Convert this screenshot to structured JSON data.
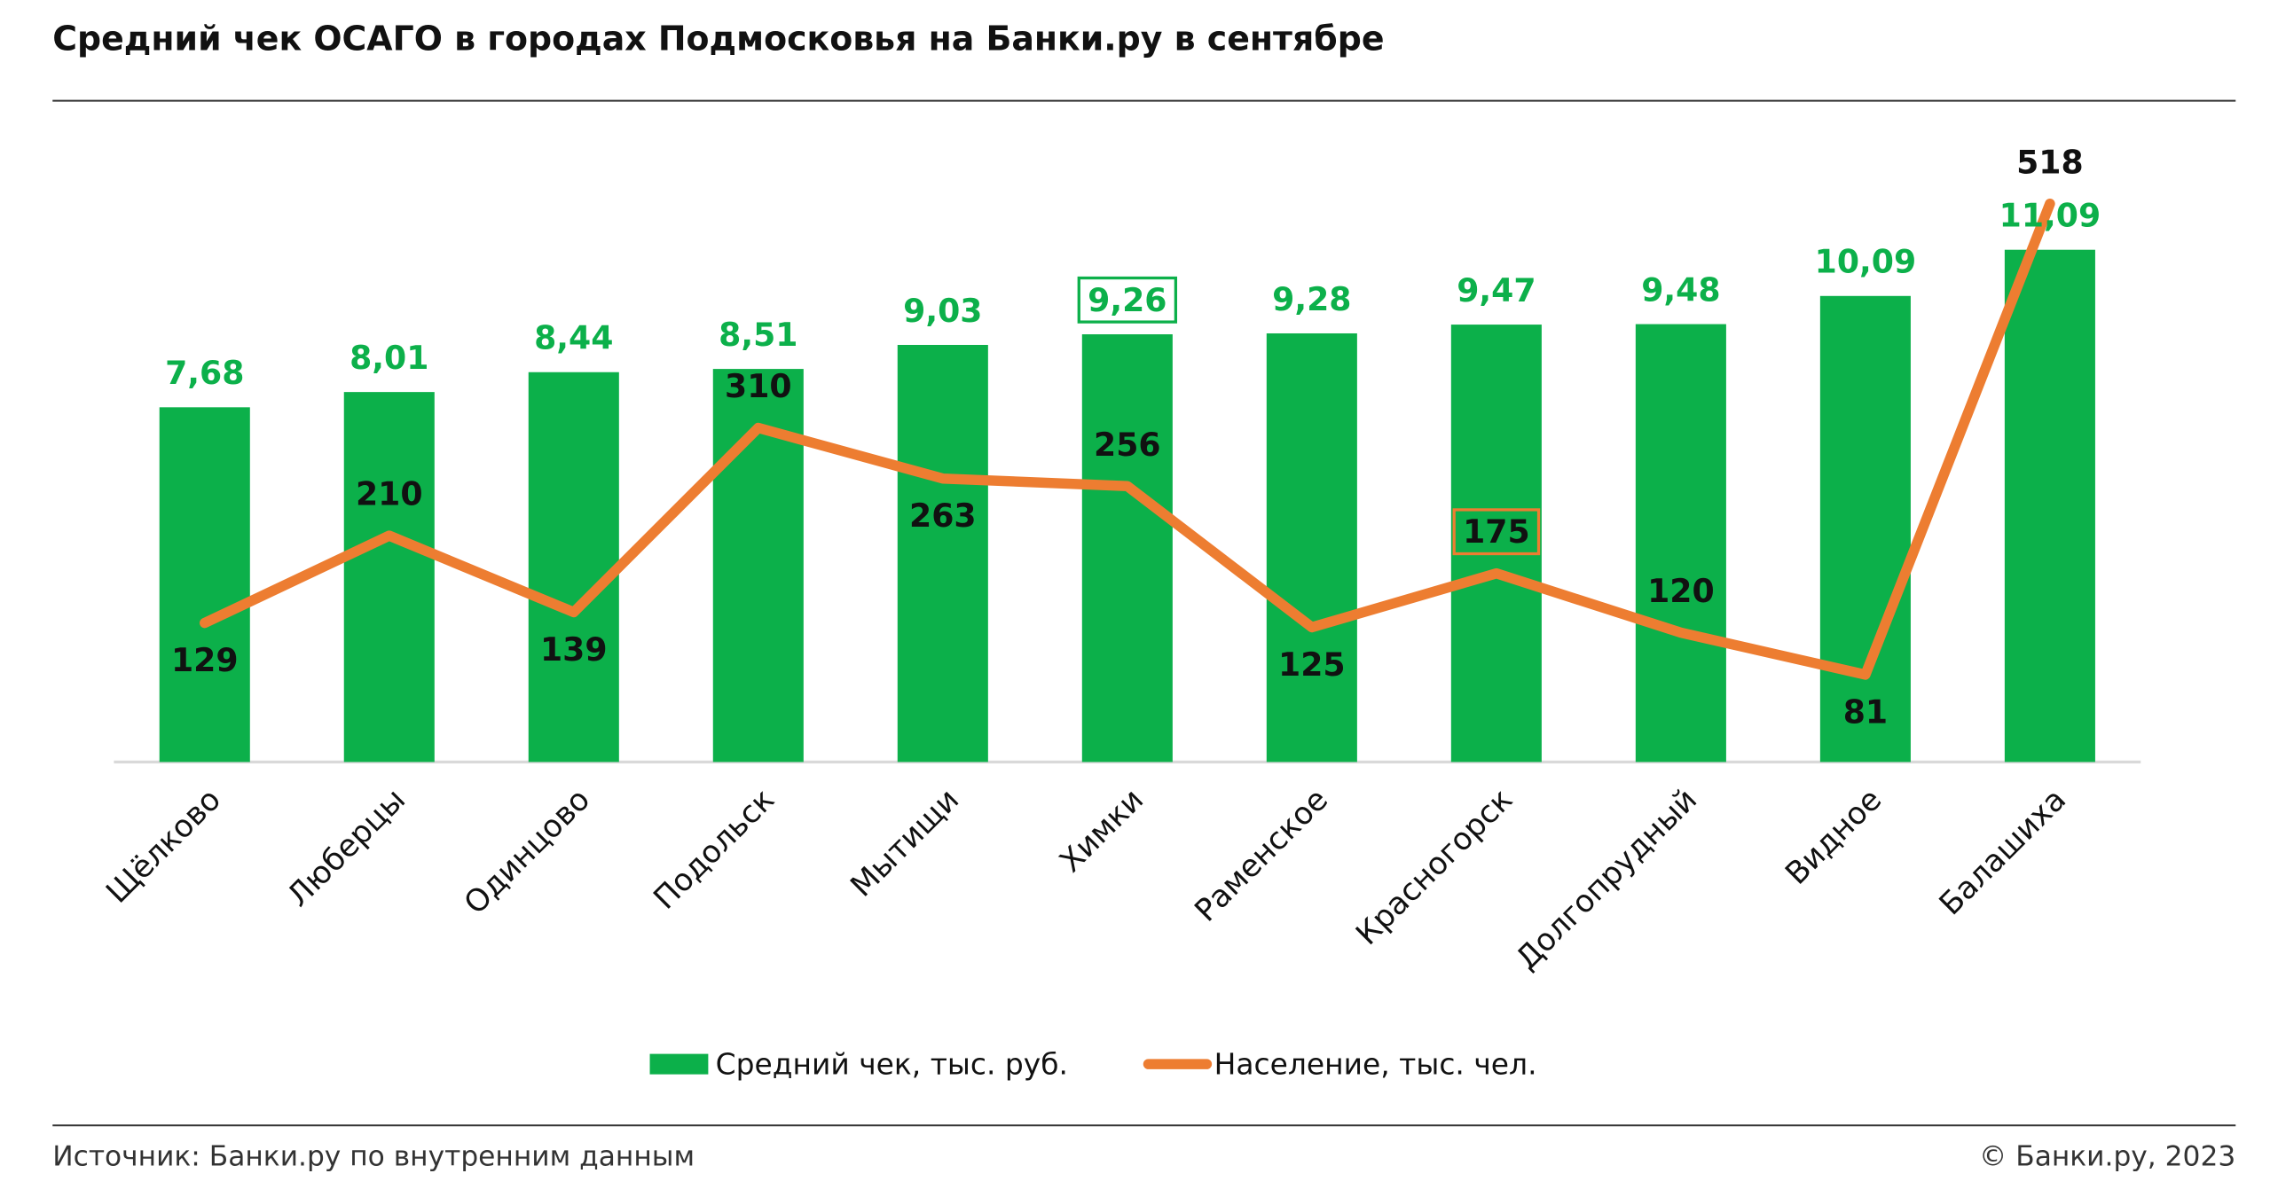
{
  "chart_data": {
    "type": "bar-line",
    "title": "Средний чек ОСАГО в городах Подмосковья на Банки.ру в сентябре",
    "categories": [
      "Щёлково",
      "Люберцы",
      "Одинцово",
      "Подольск",
      "Мытищи",
      "Химки",
      "Раменское",
      "Красногорск",
      "Долгопрудный",
      "Видное",
      "Балашиха"
    ],
    "series": [
      {
        "name": "Средний чек, тыс. руб.",
        "type": "bar",
        "color": "#0cb04a",
        "values": [
          7.68,
          8.01,
          8.44,
          8.51,
          9.03,
          9.26,
          9.28,
          9.47,
          9.48,
          10.09,
          11.09
        ],
        "value_labels": [
          "7,68",
          "8,01",
          "8,44",
          "8,51",
          "9,03",
          "9,26",
          "9,28",
          "9,47",
          "9,48",
          "10,09",
          "11,09"
        ],
        "highlight": [
          5
        ]
      },
      {
        "name": "Население, тыс. чел.",
        "type": "line",
        "axis": "y2",
        "color": "#ed7d31",
        "values": [
          129,
          210,
          139,
          310,
          263,
          256,
          125,
          175,
          120,
          81,
          518
        ],
        "highlight": [
          7
        ]
      }
    ],
    "ylim": [
      0,
      14
    ],
    "y2lim": [
      0,
      600
    ],
    "source": "Источник: Банки.ру по внутренним данным",
    "copyright": "© Банки.ру, 2023"
  }
}
